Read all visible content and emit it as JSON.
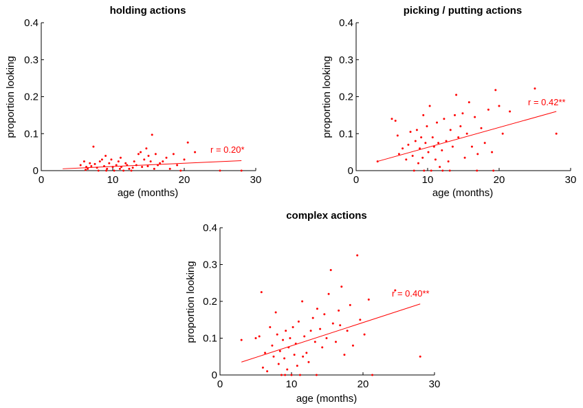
{
  "chart_data": [
    {
      "type": "scatter",
      "title": "holding actions",
      "xlabel": "age (months)",
      "ylabel": "proportion looking",
      "xlim": [
        0,
        30
      ],
      "ylim": [
        0,
        0.4
      ],
      "xticks": [
        "0",
        "10",
        "20",
        "30"
      ],
      "yticks": [
        "0",
        "0.1",
        "0.2",
        "0.3",
        "0.4"
      ],
      "annotation": "r = 0.20*",
      "color": "#ff0000",
      "fit_line": {
        "x": [
          3,
          28
        ],
        "y": [
          0.005,
          0.027
        ]
      },
      "points": [
        [
          5.5,
          0.015
        ],
        [
          6,
          0.025
        ],
        [
          6.3,
          0.01
        ],
        [
          6.5,
          0.005
        ],
        [
          6.8,
          0.02
        ],
        [
          7,
          0.012
        ],
        [
          7.3,
          0.065
        ],
        [
          7.5,
          0.018
        ],
        [
          7.8,
          0.008
        ],
        [
          8,
          0.0
        ],
        [
          8.2,
          0.025
        ],
        [
          8.5,
          0.03
        ],
        [
          8.8,
          0.012
        ],
        [
          9,
          0.04
        ],
        [
          9.2,
          0.005
        ],
        [
          9.5,
          0.02
        ],
        [
          9.8,
          0.03
        ],
        [
          10,
          0.01
        ],
        [
          10.2,
          0.0
        ],
        [
          10.5,
          0.015
        ],
        [
          10.8,
          0.025
        ],
        [
          11,
          0.005
        ],
        [
          11.2,
          0.01
        ],
        [
          11.5,
          0.0
        ],
        [
          11.8,
          0.02
        ],
        [
          12,
          0.015
        ],
        [
          12.3,
          0.005
        ],
        [
          12.6,
          0.0
        ],
        [
          13,
          0.025
        ],
        [
          13.3,
          0.015
        ],
        [
          13.6,
          0.045
        ],
        [
          13.9,
          0.05
        ],
        [
          14.1,
          0.01
        ],
        [
          14.4,
          0.03
        ],
        [
          14.7,
          0.06
        ],
        [
          15,
          0.04
        ],
        [
          15.3,
          0.025
        ],
        [
          15.5,
          0.097
        ],
        [
          15.8,
          0.005
        ],
        [
          16,
          0.045
        ],
        [
          16.3,
          0.015
        ],
        [
          16.6,
          0.02
        ],
        [
          17,
          0.025
        ],
        [
          17.5,
          0.035
        ],
        [
          18,
          0.005
        ],
        [
          18.5,
          0.045
        ],
        [
          19,
          0.015
        ],
        [
          19.5,
          0.0
        ],
        [
          20,
          0.03
        ],
        [
          20.5,
          0.076
        ],
        [
          21.5,
          0.05
        ],
        [
          25,
          0.0
        ],
        [
          28,
          0.0
        ],
        [
          6.2,
          0.002
        ],
        [
          9.1,
          0.0
        ],
        [
          11.1,
          0.035
        ],
        [
          12.8,
          0.008
        ],
        [
          14.9,
          0.012
        ]
      ]
    },
    {
      "type": "scatter",
      "title": "picking / putting actions",
      "xlabel": "age (months)",
      "ylabel": "proportion looking",
      "xlim": [
        0,
        30
      ],
      "ylim": [
        0,
        0.4
      ],
      "xticks": [
        "0",
        "10",
        "20",
        "30"
      ],
      "yticks": [
        "0",
        "0.1",
        "0.2",
        "0.3",
        "0.4"
      ],
      "annotation": "r = 0.42**",
      "color": "#ff0000",
      "fit_line": {
        "x": [
          3,
          28
        ],
        "y": [
          0.025,
          0.16
        ]
      },
      "points": [
        [
          3,
          0.025
        ],
        [
          5,
          0.14
        ],
        [
          5.5,
          0.135
        ],
        [
          5.8,
          0.095
        ],
        [
          6,
          0.045
        ],
        [
          6.5,
          0.06
        ],
        [
          7,
          0.03
        ],
        [
          7.3,
          0.07
        ],
        [
          7.6,
          0.105
        ],
        [
          7.9,
          0.04
        ],
        [
          8.1,
          0.0
        ],
        [
          8.3,
          0.08
        ],
        [
          8.5,
          0.11
        ],
        [
          8.7,
          0.02
        ],
        [
          8.9,
          0.06
        ],
        [
          9.1,
          0.09
        ],
        [
          9.3,
          0.035
        ],
        [
          9.5,
          0.0
        ],
        [
          9.7,
          0.075
        ],
        [
          9.9,
          0.12
        ],
        [
          10.1,
          0.05
        ],
        [
          10.3,
          0.175
        ],
        [
          10.5,
          0.0
        ],
        [
          10.7,
          0.09
        ],
        [
          10.9,
          0.065
        ],
        [
          11.1,
          0.03
        ],
        [
          11.3,
          0.13
        ],
        [
          11.5,
          0.075
        ],
        [
          11.7,
          0.01
        ],
        [
          12,
          0.055
        ],
        [
          12.3,
          0.14
        ],
        [
          12.6,
          0.08
        ],
        [
          12.9,
          0.025
        ],
        [
          13.2,
          0.11
        ],
        [
          13.5,
          0.065
        ],
        [
          13.8,
          0.15
        ],
        [
          14,
          0.205
        ],
        [
          14.3,
          0.09
        ],
        [
          14.6,
          0.12
        ],
        [
          14.9,
          0.155
        ],
        [
          15.2,
          0.035
        ],
        [
          15.5,
          0.1
        ],
        [
          15.8,
          0.185
        ],
        [
          16.2,
          0.065
        ],
        [
          16.6,
          0.145
        ],
        [
          17,
          0.045
        ],
        [
          17.5,
          0.115
        ],
        [
          18,
          0.075
        ],
        [
          18.5,
          0.165
        ],
        [
          19,
          0.05
        ],
        [
          19.5,
          0.218
        ],
        [
          20,
          0.175
        ],
        [
          20.5,
          0.1
        ],
        [
          21.5,
          0.16
        ],
        [
          25,
          0.222
        ],
        [
          28,
          0.1
        ],
        [
          12.1,
          0.0
        ],
        [
          16.9,
          0.0
        ],
        [
          19.2,
          0.0
        ],
        [
          9.4,
          0.15
        ],
        [
          13.1,
          0.0
        ]
      ]
    },
    {
      "type": "scatter",
      "title": "complex actions",
      "xlabel": "age (months)",
      "ylabel": "proportion looking",
      "xlim": [
        0,
        30
      ],
      "ylim": [
        0,
        0.4
      ],
      "xticks": [
        "0",
        "10",
        "20",
        "30"
      ],
      "yticks": [
        "0",
        "0.1",
        "0.2",
        "0.3",
        "0.4"
      ],
      "annotation": "r = 0.40**",
      "color": "#ff0000",
      "fit_line": {
        "x": [
          3,
          28
        ],
        "y": [
          0.035,
          0.193
        ]
      },
      "points": [
        [
          3,
          0.095
        ],
        [
          5,
          0.1
        ],
        [
          5.5,
          0.105
        ],
        [
          5.8,
          0.225
        ],
        [
          6,
          0.02
        ],
        [
          6.3,
          0.06
        ],
        [
          6.6,
          0.01
        ],
        [
          7,
          0.13
        ],
        [
          7.3,
          0.08
        ],
        [
          7.5,
          0.05
        ],
        [
          7.8,
          0.17
        ],
        [
          8,
          0.11
        ],
        [
          8.2,
          0.03
        ],
        [
          8.4,
          0.065
        ],
        [
          8.6,
          0.0
        ],
        [
          8.8,
          0.095
        ],
        [
          9,
          0.045
        ],
        [
          9.2,
          0.12
        ],
        [
          9.4,
          0.015
        ],
        [
          9.6,
          0.075
        ],
        [
          9.8,
          0.1
        ],
        [
          10,
          0.0
        ],
        [
          10.2,
          0.13
        ],
        [
          10.4,
          0.055
        ],
        [
          10.6,
          0.085
        ],
        [
          10.8,
          0.025
        ],
        [
          11,
          0.145
        ],
        [
          11.2,
          0.0
        ],
        [
          11.5,
          0.2
        ],
        [
          11.8,
          0.105
        ],
        [
          12.1,
          0.06
        ],
        [
          12.4,
          0.035
        ],
        [
          12.7,
          0.12
        ],
        [
          13,
          0.155
        ],
        [
          13.3,
          0.09
        ],
        [
          13.6,
          0.18
        ],
        [
          14,
          0.125
        ],
        [
          14.3,
          0.075
        ],
        [
          14.6,
          0.165
        ],
        [
          14.9,
          0.1
        ],
        [
          15.2,
          0.22
        ],
        [
          15.5,
          0.285
        ],
        [
          15.8,
          0.14
        ],
        [
          16.2,
          0.09
        ],
        [
          16.6,
          0.175
        ],
        [
          17,
          0.24
        ],
        [
          17.4,
          0.055
        ],
        [
          17.8,
          0.12
        ],
        [
          18.2,
          0.19
        ],
        [
          18.6,
          0.08
        ],
        [
          19.2,
          0.325
        ],
        [
          19.6,
          0.15
        ],
        [
          20.2,
          0.11
        ],
        [
          20.8,
          0.205
        ],
        [
          21.3,
          0.0
        ],
        [
          24.5,
          0.23
        ],
        [
          28,
          0.05
        ],
        [
          9.1,
          0.0
        ],
        [
          13.5,
          0.0
        ],
        [
          16.8,
          0.135
        ],
        [
          11.6,
          0.05
        ]
      ]
    }
  ]
}
